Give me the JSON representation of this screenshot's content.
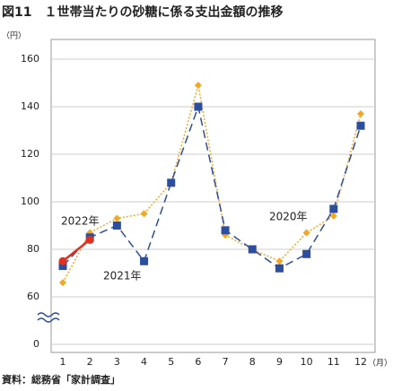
{
  "chart_data": {
    "type": "line",
    "title": "図11　１世帯当たりの砂糖に係る支出金額の推移",
    "y_label": "（円）",
    "x_label": "（月）",
    "source": "資料：総務省「家計調査」",
    "categories": [
      "1",
      "2",
      "3",
      "4",
      "5",
      "6",
      "7",
      "8",
      "9",
      "10",
      "11",
      "12"
    ],
    "ylim": [
      0,
      160
    ],
    "ybreak": [
      0,
      60
    ],
    "yticks": [
      0,
      60,
      80,
      100,
      120,
      140,
      160
    ],
    "grid": true,
    "series": [
      {
        "name": "2020年",
        "color": "#f5a623",
        "marker": "diamond",
        "dash": "dotted",
        "values": [
          66,
          87,
          93,
          95,
          108,
          149,
          86,
          80,
          75,
          87,
          94,
          137
        ]
      },
      {
        "name": "2021年",
        "color": "#2d4e9c",
        "marker": "square",
        "dash": "dashed",
        "values": [
          73,
          85,
          90,
          75,
          108,
          140,
          88,
          80,
          72,
          78,
          97,
          132
        ]
      },
      {
        "name": "2022年",
        "color": "#e0301e",
        "marker": "circle",
        "dash": "solid",
        "values": [
          75,
          84,
          null,
          null,
          null,
          null,
          null,
          null,
          null,
          null,
          null,
          null
        ]
      }
    ]
  }
}
